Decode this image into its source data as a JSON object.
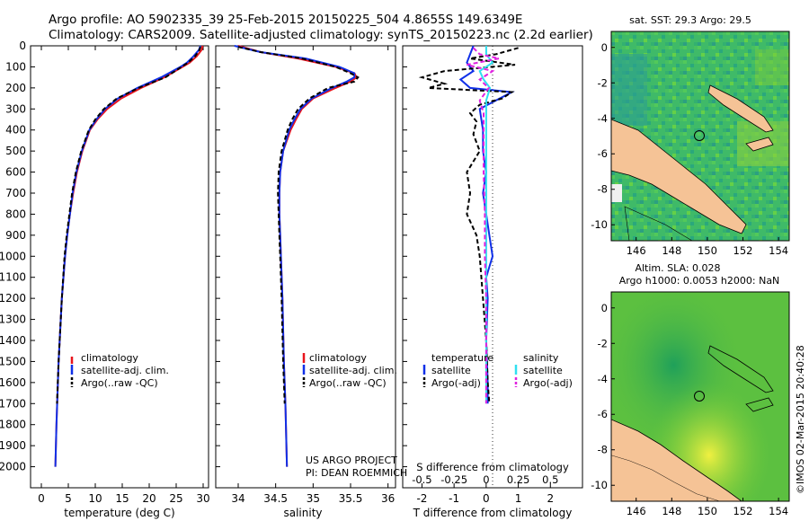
{
  "header": {
    "line1": "Argo profile: AO 5902335_39 25-Feb-2015 20150225_504 4.8655S 149.6349E",
    "line2": "Climatology: CARS2009. Satellite-adjusted climatology: synTS_20150223.nc (2.2d earlier)"
  },
  "footer": {
    "project": "US ARGO PROJECT",
    "pi": "PI: DEAN ROEMMICH",
    "credit": "©IMOS 02-Mar-2015 20:40:28"
  },
  "colors": {
    "climatology": "#e8141c",
    "satellite": "#1030e8",
    "argo": "#000000",
    "salinity_satellite": "#30e0f0",
    "salinity_argo": "#e020e0",
    "land": "#f5c396"
  },
  "chart_data": [
    {
      "type": "line",
      "id": "temperature",
      "xlabel": "temperature (deg C)",
      "ylabel": "",
      "xlim": [
        -2,
        31
      ],
      "ylim": [
        0,
        2100
      ],
      "xticks": [
        "0",
        "5",
        "10",
        "15",
        "20",
        "25",
        "30"
      ],
      "xtick_values": [
        0,
        5,
        10,
        15,
        20,
        25,
        30
      ],
      "yticks": [
        "0",
        "100",
        "200",
        "300",
        "400",
        "500",
        "600",
        "700",
        "800",
        "900",
        "1000",
        "1100",
        "1200",
        "1300",
        "1400",
        "1500",
        "1600",
        "1700",
        "1800",
        "1900",
        "2000"
      ],
      "ytick_values": [
        0,
        100,
        200,
        300,
        400,
        500,
        600,
        700,
        800,
        900,
        1000,
        1100,
        1200,
        1300,
        1400,
        1500,
        1600,
        1700,
        1800,
        1900,
        2000
      ],
      "legend": [
        "climatology",
        "satellite-adj. clim.",
        "Argo(..raw -QC)"
      ],
      "series": [
        {
          "name": "climatology",
          "depth": [
            0,
            20,
            50,
            80,
            100,
            150,
            200,
            250,
            300,
            350,
            400,
            500,
            600,
            700,
            800,
            900,
            1000,
            1200,
            1500,
            1800,
            2000
          ],
          "values": [
            29.9,
            29.7,
            28.8,
            27.5,
            26.2,
            22.8,
            18.5,
            14.8,
            12.2,
            10.4,
            9.0,
            7.6,
            6.6,
            5.9,
            5.3,
            4.8,
            4.4,
            3.8,
            3.2,
            2.8,
            2.6
          ]
        },
        {
          "name": "satellite-adj. clim.",
          "depth": [
            0,
            20,
            50,
            80,
            100,
            150,
            200,
            250,
            300,
            350,
            400,
            500,
            600,
            700,
            800,
            900,
            1000,
            1200,
            1500,
            1800,
            2000
          ],
          "values": [
            29.5,
            29.2,
            28.2,
            27.0,
            25.8,
            22.2,
            17.8,
            14.2,
            11.8,
            10.2,
            8.9,
            7.5,
            6.5,
            5.8,
            5.3,
            4.8,
            4.4,
            3.8,
            3.2,
            2.8,
            2.6
          ]
        },
        {
          "name": "Argo(..raw -QC)",
          "depth": [
            5,
            20,
            50,
            80,
            100,
            150,
            200,
            250,
            300,
            350,
            400,
            500,
            600,
            700,
            800,
            900,
            1000,
            1200,
            1500,
            1700
          ],
          "values": [
            29.5,
            29.3,
            28.5,
            27.2,
            26.0,
            23.0,
            18.0,
            14.0,
            11.6,
            10.0,
            8.8,
            7.4,
            6.4,
            5.7,
            5.2,
            4.7,
            4.3,
            3.8,
            3.2,
            2.9
          ]
        }
      ]
    },
    {
      "type": "line",
      "id": "salinity",
      "xlabel": "salinity",
      "xlim": [
        33.7,
        36.1
      ],
      "ylim": [
        0,
        2100
      ],
      "xticks": [
        "34",
        "34.5",
        "35",
        "35.5",
        "36"
      ],
      "xtick_values": [
        34,
        34.5,
        35,
        35.5,
        36
      ],
      "legend": [
        "climatology",
        "satellite-adj. clim.",
        "Argo(..raw -QC)"
      ],
      "series": [
        {
          "name": "climatology",
          "depth": [
            0,
            30,
            60,
            100,
            130,
            150,
            170,
            200,
            250,
            300,
            350,
            400,
            500,
            600,
            700,
            800,
            900,
            1000,
            1200,
            1500,
            1700,
            2000
          ],
          "values": [
            34.0,
            34.3,
            34.8,
            35.3,
            35.55,
            35.58,
            35.5,
            35.3,
            35.0,
            34.85,
            34.77,
            34.7,
            34.6,
            34.56,
            34.55,
            34.55,
            34.56,
            34.57,
            34.59,
            34.61,
            34.63,
            34.65
          ]
        },
        {
          "name": "satellite-adj. clim.",
          "depth": [
            0,
            30,
            60,
            100,
            130,
            150,
            170,
            200,
            250,
            300,
            350,
            400,
            500,
            600,
            700,
            800,
            900,
            1000,
            1200,
            1500,
            1700,
            2000
          ],
          "values": [
            33.95,
            34.3,
            34.9,
            35.35,
            35.55,
            35.55,
            35.45,
            35.25,
            34.98,
            34.83,
            34.75,
            34.68,
            34.6,
            34.56,
            34.55,
            34.55,
            34.56,
            34.57,
            34.59,
            34.61,
            34.63,
            34.65
          ]
        },
        {
          "name": "Argo(..raw -QC)",
          "depth": [
            5,
            30,
            60,
            100,
            130,
            150,
            170,
            200,
            250,
            300,
            350,
            400,
            500,
            600,
            700,
            800,
            900,
            1000,
            1200,
            1500,
            1700
          ],
          "values": [
            34.0,
            34.3,
            34.85,
            35.3,
            35.5,
            35.6,
            35.55,
            35.2,
            34.95,
            34.8,
            34.72,
            34.66,
            34.58,
            34.54,
            34.53,
            34.54,
            34.55,
            34.56,
            34.58,
            34.6,
            34.62
          ]
        }
      ]
    },
    {
      "type": "line",
      "id": "difference",
      "xlabel": "T difference from climatology",
      "xlabel_top": "S difference from climatology",
      "xlim": [
        -2.6,
        3.0
      ],
      "ylim": [
        0,
        2100
      ],
      "xticks": [
        "-2",
        "-1",
        "0",
        "1",
        "2"
      ],
      "xtick_values": [
        -2,
        -1,
        0,
        1,
        2
      ],
      "sticks": [
        "-0.5",
        "-0.25",
        "0",
        "0.25",
        "0.5"
      ],
      "stick_values": [
        -0.5,
        -0.25,
        0,
        0.25,
        0.5
      ],
      "legend_t": [
        "temperature",
        "satellite",
        "Argo(-adj)"
      ],
      "legend_s": [
        "salinity",
        "satellite",
        "Argo(-adj)"
      ],
      "series": [
        {
          "name": "T satellite",
          "depth": [
            0,
            40,
            80,
            120,
            160,
            200,
            220,
            260,
            300,
            400,
            500,
            600,
            700,
            800,
            900,
            1000,
            1050,
            1100,
            1200,
            1400,
            1600,
            1700
          ],
          "values": [
            -0.4,
            -0.5,
            -0.6,
            -0.4,
            -0.8,
            -0.5,
            0.8,
            0.3,
            -0.2,
            -0.1,
            -0.1,
            0.0,
            -0.1,
            0.0,
            0.1,
            0.2,
            0.1,
            0.0,
            0.05,
            0.0,
            0.05,
            0.05
          ]
        },
        {
          "name": "T Argo(-adj)",
          "depth": [
            10,
            40,
            60,
            90,
            120,
            150,
            180,
            200,
            220,
            250,
            280,
            320,
            360,
            420,
            500,
            600,
            700,
            800,
            900,
            1000,
            1200,
            1400,
            1600,
            1700
          ],
          "values": [
            1.0,
            0.3,
            -0.5,
            0.9,
            -1.3,
            -2.0,
            -1.3,
            -1.8,
            0.8,
            0.5,
            -0.2,
            -0.5,
            -0.3,
            -0.4,
            -0.2,
            -0.6,
            -0.5,
            -0.6,
            -0.3,
            -0.2,
            -0.1,
            0.0,
            0.05,
            0.1
          ]
        },
        {
          "name": "S satellite",
          "depth": [
            0,
            40,
            80,
            120,
            160,
            200,
            260,
            300,
            400,
            600,
            800,
            1000,
            1200,
            1500,
            1700
          ],
          "values": [
            0.0,
            0.0,
            0.05,
            -0.05,
            -0.02,
            0.03,
            0.0,
            0.0,
            0.0,
            0.0,
            0.0,
            0.0,
            0.0,
            0.0,
            0.0
          ]
        },
        {
          "name": "S Argo(-adj)",
          "depth": [
            10,
            40,
            60,
            90,
            120,
            160,
            200,
            260,
            320,
            400,
            600,
            800,
            1000,
            1200,
            1500,
            1700
          ],
          "values": [
            -0.1,
            -0.05,
            0.1,
            -0.15,
            0.05,
            -0.05,
            0.02,
            -0.05,
            -0.02,
            -0.02,
            -0.02,
            -0.01,
            -0.01,
            0.0,
            0.0,
            0.0
          ]
        }
      ]
    }
  ],
  "maps": {
    "sst": {
      "title": "sat. SST: 29.3 Argo: 29.5",
      "xticks": [
        "146",
        "148",
        "150",
        "152",
        "154"
      ],
      "xtick_values": [
        146,
        148,
        150,
        152,
        154
      ],
      "yticks": [
        "0",
        "-2",
        "-4",
        "-6",
        "-8",
        "-10"
      ],
      "ytick_values": [
        0,
        -2,
        -4,
        -6,
        -8,
        -10
      ],
      "lon_range": [
        144.6,
        154.6
      ],
      "lat_range": [
        -10.9,
        0.9
      ],
      "float_lon": 149.6349,
      "float_lat": -4.8655
    },
    "sla": {
      "title_line1": "Altim. SLA: 0.028",
      "title_line2": "Argo h1000: 0.0053 h2000: NaN",
      "xticks": [
        "146",
        "148",
        "150",
        "152",
        "154"
      ],
      "xtick_values": [
        146,
        148,
        150,
        152,
        154
      ],
      "yticks": [
        "0",
        "-2",
        "-4",
        "-6",
        "-8",
        "-10"
      ],
      "ytick_values": [
        0,
        -2,
        -4,
        -6,
        -8,
        -10
      ],
      "lon_range": [
        144.6,
        154.6
      ],
      "lat_range": [
        -10.9,
        0.9
      ],
      "float_lon": 149.6349,
      "float_lat": -4.8655
    }
  }
}
